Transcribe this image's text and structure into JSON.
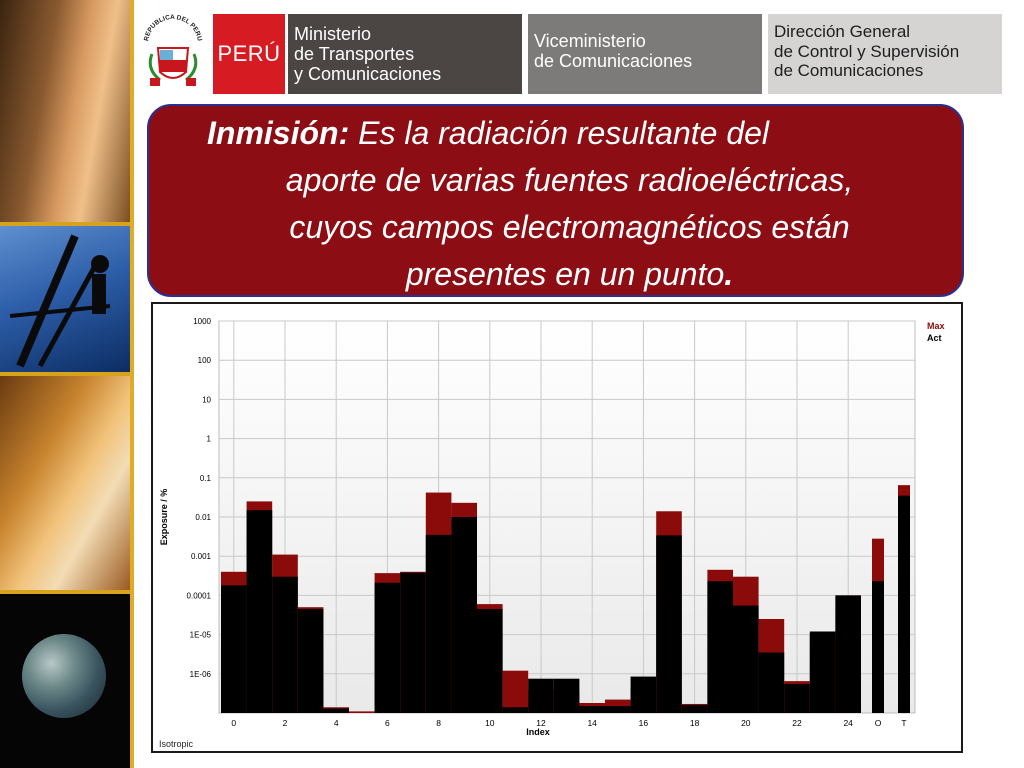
{
  "header": {
    "seal_text": "REPUBLICA DEL PERU",
    "peru_label": "PERÚ",
    "ministry_lines": [
      "Ministerio",
      "de Transportes",
      "y Comunicaciones"
    ],
    "vice_lines": [
      "Viceministerio",
      "de Comunicaciones"
    ],
    "direction_lines": [
      "Dirección General",
      "de Control y Supervisión",
      "de Comunicaciones"
    ]
  },
  "definition": {
    "term": "Inmisión:",
    "text_lines": [
      "Es la radiación resultante del",
      "aporte de varias fuentes radioeléctricas,",
      "cuyos campos electromagnéticos están",
      "presentes en un punto"
    ],
    "end_mark": "."
  },
  "colors": {
    "max": "#8b0b0b",
    "act": "#000000",
    "box": "#8d0d14",
    "peru_red": "#d61b22"
  },
  "chart_data": {
    "type": "bar",
    "yscale": "log",
    "ylim": [
      1e-07,
      1000
    ],
    "ylabel": "Exposure / %",
    "xlabel": "Index",
    "y_ticks": [
      {
        "v": 1000,
        "label": "1000"
      },
      {
        "v": 100,
        "label": "100"
      },
      {
        "v": 10,
        "label": "10"
      },
      {
        "v": 1,
        "label": "1"
      },
      {
        "v": 0.1,
        "label": "0.1"
      },
      {
        "v": 0.01,
        "label": "0.01"
      },
      {
        "v": 0.001,
        "label": "0.001"
      },
      {
        "v": 0.0001,
        "label": "0.0001"
      },
      {
        "v": 1e-05,
        "label": "1E-05"
      },
      {
        "v": 1e-06,
        "label": "1E-06"
      }
    ],
    "x_tick_labels": [
      "0",
      "2",
      "4",
      "6",
      "8",
      "10",
      "12",
      "14",
      "16",
      "18",
      "20",
      "22",
      "24",
      "O",
      "T"
    ],
    "legend": {
      "max": "Max",
      "act": "Act",
      "placement": "top-right"
    },
    "corner_label": "Isotropic",
    "categories": [
      "0",
      "1",
      "2",
      "3",
      "4",
      "5",
      "6",
      "7",
      "8",
      "9",
      "10",
      "11",
      "12",
      "13",
      "14",
      "15",
      "16",
      "17",
      "18",
      "19",
      "20",
      "21",
      "22",
      "23",
      "24",
      "O",
      "T"
    ],
    "series": [
      {
        "name": "Max",
        "values": [
          0.0004,
          0.025,
          0.0011,
          5e-05,
          1.4e-07,
          1.1e-07,
          0.00037,
          0.0004,
          0.042,
          0.023,
          6e-05,
          1.2e-06,
          3.8e-07,
          3.6e-07,
          1.8e-07,
          2.2e-07,
          4.2e-07,
          0.014,
          1.7e-07,
          0.00045,
          0.0003,
          2.5e-05,
          6.5e-07,
          1e-05,
          0.0001,
          0.0028,
          0.065
        ]
      },
      {
        "name": "Act",
        "values": [
          0.00018,
          0.015,
          0.0003,
          4.5e-05,
          1.3e-07,
          1e-07,
          0.00021,
          0.00038,
          0.0035,
          0.01,
          4.5e-05,
          1.4e-07,
          7.5e-07,
          7.5e-07,
          1.5e-07,
          1.5e-07,
          8.5e-07,
          0.0034,
          1.6e-07,
          0.00023,
          5.5e-05,
          3.5e-06,
          5.5e-07,
          1.2e-05,
          0.0001,
          0.00023,
          0.035
        ]
      }
    ]
  }
}
